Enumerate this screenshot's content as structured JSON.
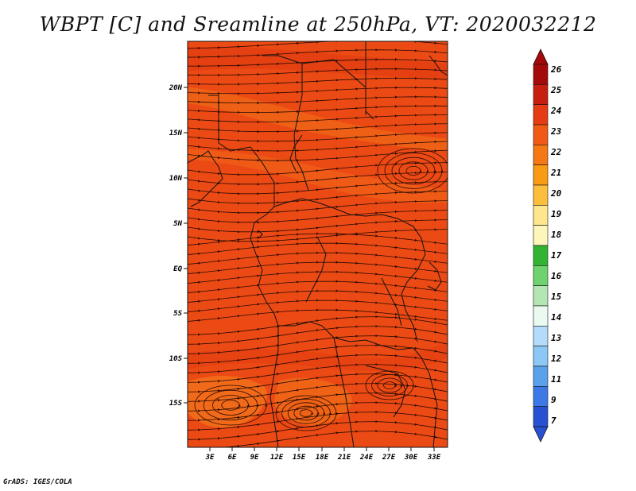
{
  "header": {
    "title": "WBPT [C] and Sreamline at 250hPa, VT: 2020032212"
  },
  "footer": {
    "credit": "GrADS: IGES/COLA"
  },
  "map": {
    "lat_labels": [
      "20N",
      "15N",
      "10N",
      "5N",
      "EQ",
      "5S",
      "10S",
      "15S"
    ],
    "lon_labels": [
      "3E",
      "6E",
      "9E",
      "12E",
      "15E",
      "18E",
      "21E",
      "24E",
      "27E",
      "30E",
      "33E"
    ],
    "colors": {
      "background_field": "#ec4a14",
      "warm_band": "#f05f14",
      "hot_band": "#dc3210",
      "streamline": "#2a0a00",
      "border": "#111111"
    }
  },
  "colorbar": {
    "labels": [
      "26",
      "25",
      "24",
      "23",
      "22",
      "21",
      "20",
      "19",
      "18",
      "17",
      "16",
      "15",
      "14",
      "13",
      "12",
      "11",
      "9",
      "7"
    ],
    "colors": [
      "#a50a0a",
      "#c81e0f",
      "#e63c14",
      "#f05a14",
      "#f57814",
      "#fa9b14",
      "#fcbe3c",
      "#fde68c",
      "#fdf5b9",
      "#32b432",
      "#6ed26e",
      "#b4e6b4",
      "#eafaf0",
      "#b4dcfa",
      "#8cc8f5",
      "#5aa0eb",
      "#3c78e6",
      "#2850d2"
    ],
    "top_arrow_color": "#a50a0a",
    "bottom_arrow_color": "#2850d2"
  }
}
